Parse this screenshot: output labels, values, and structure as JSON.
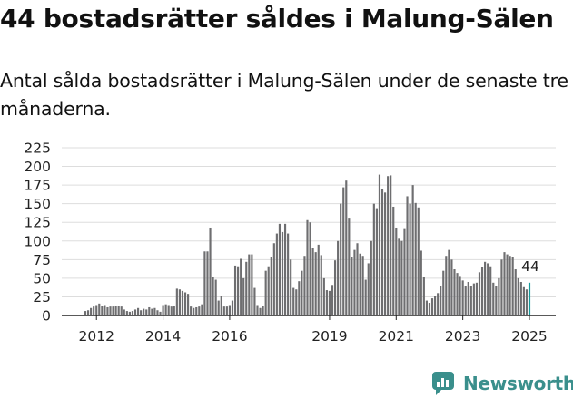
{
  "title": "44 bostadsrätter såldes i Malung-Sälen",
  "subtitle": "Antal sålda bostadsrätter i Malung-Sälen under de senaste tre månaderna.",
  "brand": {
    "name": "Newsworthy",
    "icon": "newsworthy-logo-icon"
  },
  "colors": {
    "bar": "#6e6e70",
    "highlight": "#15999a",
    "grid": "#dddddd",
    "axis": "#222222",
    "brand": "#3a8f8c"
  },
  "chart_data": {
    "type": "bar",
    "title": "",
    "xlabel": "",
    "ylabel": "",
    "ylim": [
      0,
      225
    ],
    "yticks": [
      "0",
      "25",
      "50",
      "75",
      "100",
      "125",
      "150",
      "175",
      "200",
      "225"
    ],
    "xticks": [
      {
        "label": "2012",
        "index": 4
      },
      {
        "label": "2014",
        "index": 28
      },
      {
        "label": "2016",
        "index": 52
      },
      {
        "label": "2019",
        "index": 88
      },
      {
        "label": "2021",
        "index": 112
      },
      {
        "label": "2023",
        "index": 136
      },
      {
        "label": "2025",
        "index": 160
      }
    ],
    "first_period": "2011-09",
    "last_period": "2025-09",
    "highlight_last": true,
    "last_value_label": "44",
    "values": [
      6,
      7,
      10,
      12,
      14,
      16,
      13,
      14,
      11,
      12,
      12,
      13,
      13,
      12,
      8,
      6,
      5,
      6,
      8,
      10,
      7,
      9,
      8,
      11,
      9,
      10,
      7,
      5,
      14,
      15,
      14,
      12,
      13,
      36,
      35,
      33,
      31,
      29,
      12,
      10,
      11,
      12,
      15,
      86,
      86,
      118,
      52,
      48,
      20,
      26,
      12,
      12,
      14,
      20,
      67,
      66,
      76,
      50,
      72,
      82,
      82,
      37,
      14,
      10,
      13,
      60,
      66,
      78,
      97,
      110,
      123,
      112,
      123,
      110,
      75,
      37,
      35,
      46,
      60,
      80,
      128,
      125,
      90,
      85,
      95,
      81,
      50,
      34,
      33,
      41,
      74,
      100,
      150,
      172,
      181,
      130,
      79,
      88,
      97,
      83,
      80,
      48,
      70,
      100,
      150,
      144,
      189,
      170,
      165,
      187,
      188,
      146,
      118,
      103,
      100,
      116,
      160,
      150,
      175,
      151,
      145,
      87,
      52,
      20,
      17,
      23,
      26,
      30,
      39,
      60,
      80,
      88,
      75,
      62,
      57,
      53,
      47,
      40,
      45,
      40,
      43,
      44,
      58,
      65,
      72,
      70,
      66,
      44,
      40,
      50,
      75,
      85,
      82,
      80,
      78,
      62,
      50,
      45,
      38,
      35,
      44
    ]
  }
}
